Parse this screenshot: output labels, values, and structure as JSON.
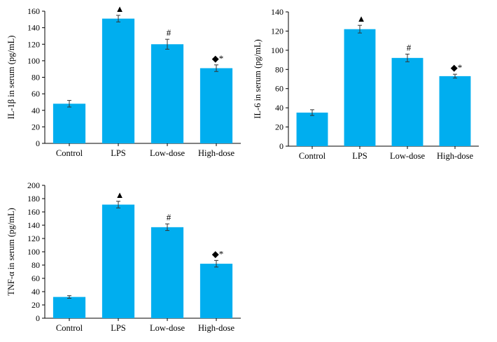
{
  "colors": {
    "bar": "#00AEEF",
    "axis": "#000000",
    "error_bar": "#333333"
  },
  "chart_data": [
    {
      "type": "bar",
      "ylabel": "IL-1β in serum (pg/mL)",
      "categories": [
        "Control",
        "LPS",
        "Low-dose",
        "High-dose"
      ],
      "values": [
        48,
        151,
        120,
        91
      ],
      "errors": [
        4,
        4,
        6,
        4
      ],
      "annotations": [
        "",
        "▲",
        "#",
        "◆*"
      ],
      "ylim": [
        0,
        160
      ],
      "yticks": [
        0,
        20,
        40,
        60,
        80,
        100,
        120,
        140,
        160
      ]
    },
    {
      "type": "bar",
      "ylabel": "IL-6 in serum (pg/mL)",
      "categories": [
        "Control",
        "LPS",
        "Low-dose",
        "High-dose"
      ],
      "values": [
        35,
        122,
        92,
        73
      ],
      "errors": [
        3,
        4,
        4,
        2
      ],
      "annotations": [
        "",
        "▲",
        "#",
        "◆*"
      ],
      "ylim": [
        0,
        140
      ],
      "yticks": [
        0,
        20,
        40,
        60,
        80,
        100,
        120,
        140
      ]
    },
    {
      "type": "bar",
      "ylabel": "TNF-α in serum (pg/mL)",
      "categories": [
        "Control",
        "LPS",
        "Low-dose",
        "High-dose"
      ],
      "values": [
        32,
        171,
        137,
        82
      ],
      "errors": [
        2,
        5,
        5,
        5
      ],
      "annotations": [
        "",
        "▲",
        "#",
        "◆*"
      ],
      "ylim": [
        0,
        200
      ],
      "yticks": [
        0,
        20,
        40,
        60,
        80,
        100,
        120,
        140,
        160,
        180,
        200
      ]
    }
  ]
}
